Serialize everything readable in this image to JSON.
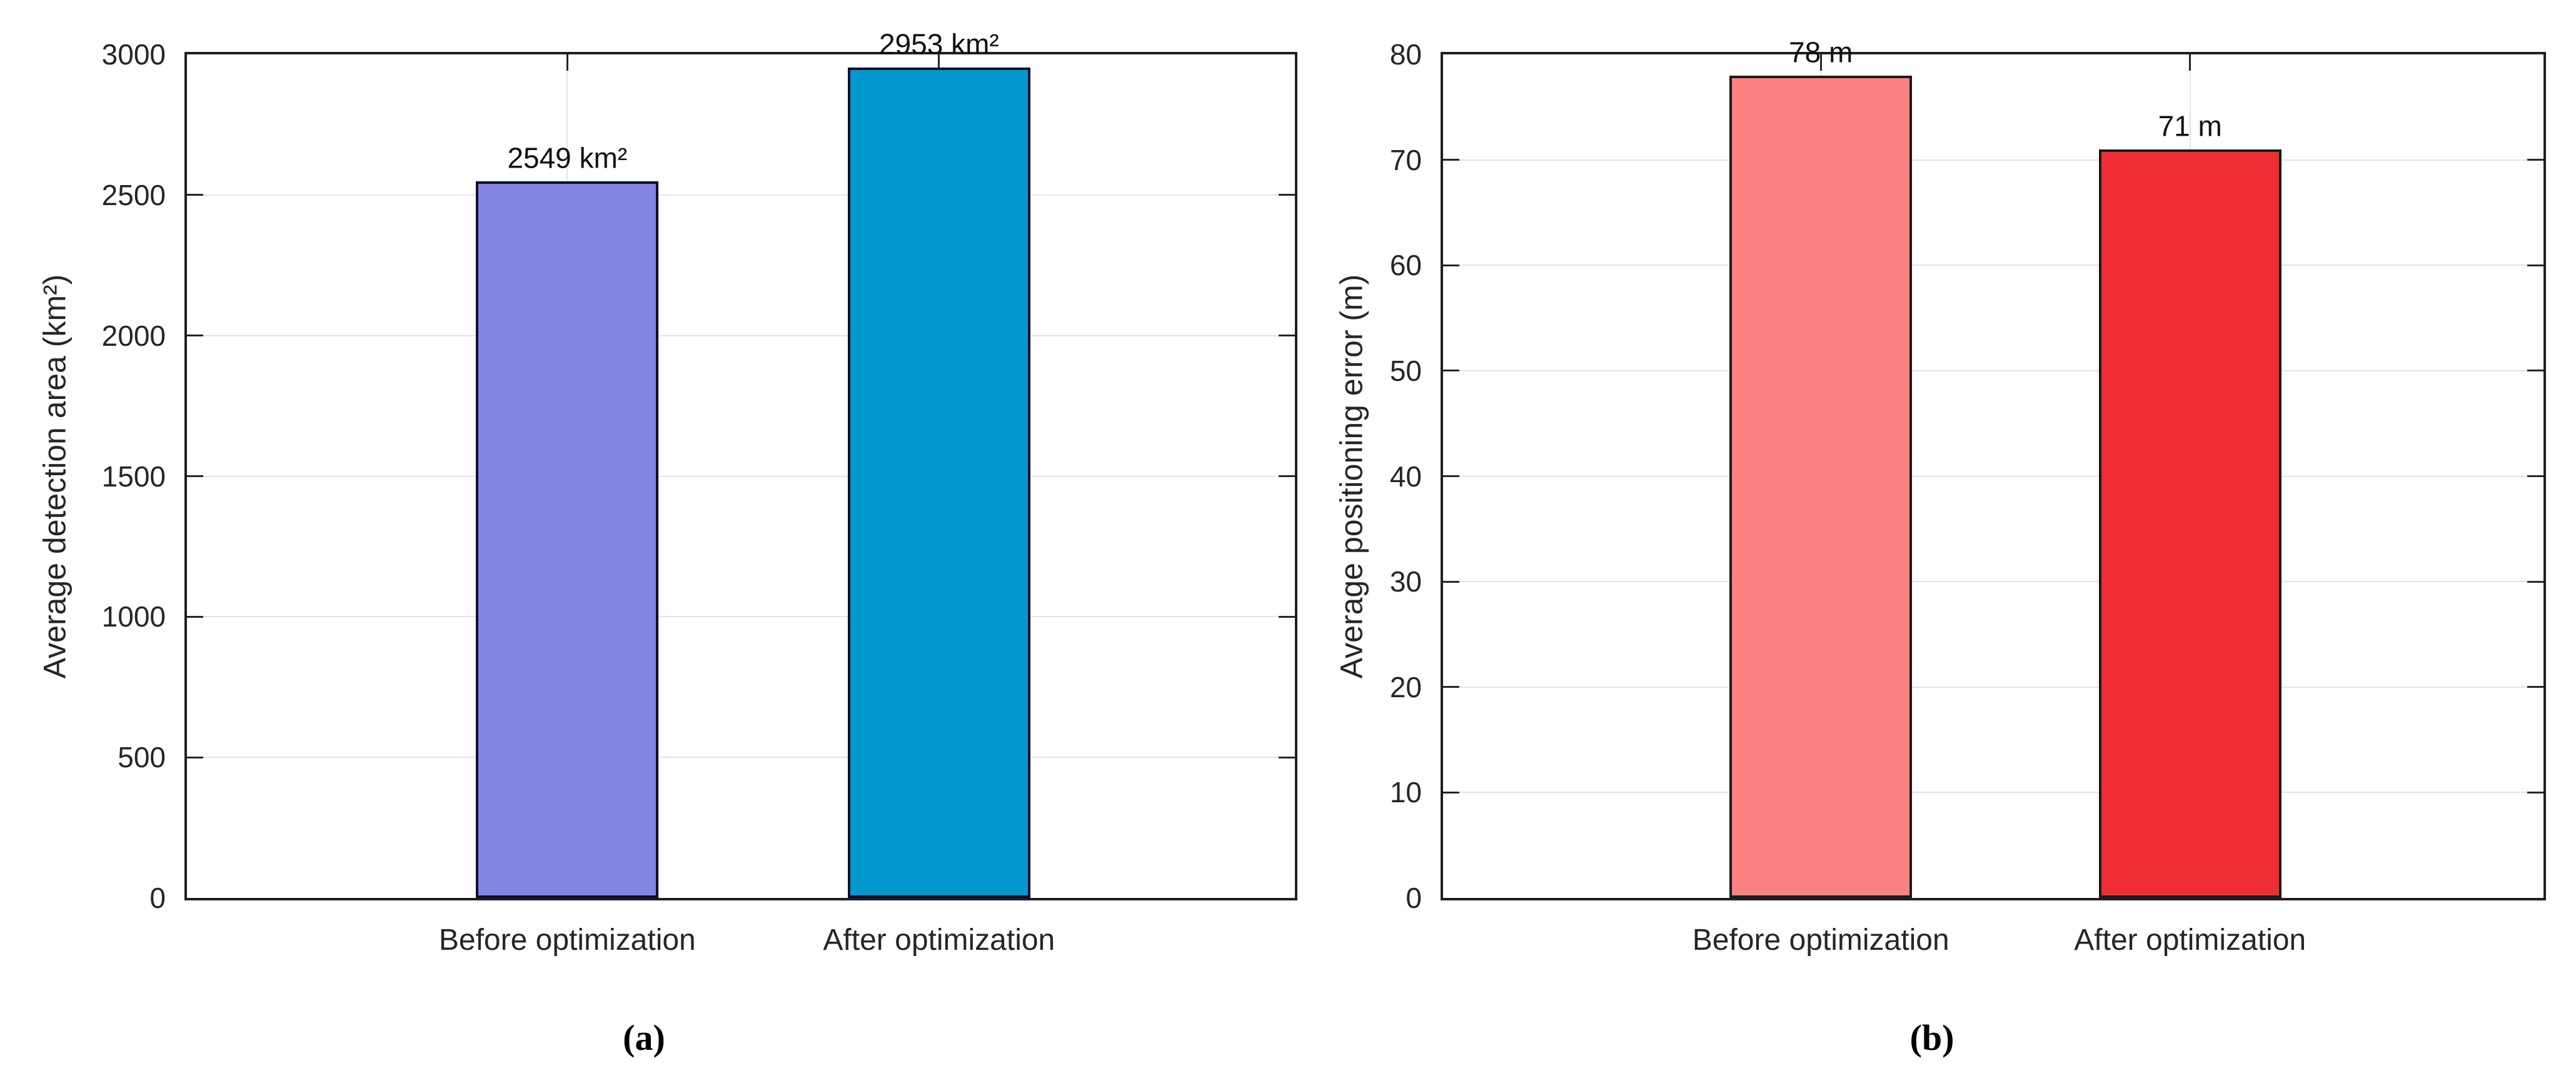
{
  "figure": {
    "background": "#FFFFFF"
  },
  "styles": {
    "frame_color": "#1F1F1F",
    "grid_color": "#E3E3E3",
    "tick_color": "#262626",
    "text_color": "#262626",
    "value_label_color": "#111111"
  },
  "chart_data": [
    {
      "panel": "a",
      "type": "bar",
      "title": "",
      "categories": [
        "Before optimization",
        "After optimization"
      ],
      "values": [
        2549,
        2953
      ],
      "bar_labels": [
        "2549 km²",
        "2953 km²"
      ],
      "bar_colors": [
        "#8384E4",
        "#0499CE"
      ],
      "bar_edge_color": "#0D0D2B",
      "xlabel": "",
      "ylabel": "Average detection area (km²)",
      "ylim": [
        0,
        3000
      ],
      "yticks": [
        0,
        500,
        1000,
        1500,
        2000,
        2500,
        3000
      ],
      "grid": true,
      "legend": null,
      "caption": "(a)"
    },
    {
      "panel": "b",
      "type": "bar",
      "title": "",
      "categories": [
        "Before optimization",
        "After optimization"
      ],
      "values": [
        78,
        71
      ],
      "bar_labels": [
        "78 m",
        "71 m"
      ],
      "bar_colors": [
        "#FC8181",
        "#EE2E33"
      ],
      "bar_edge_color": "#1A1A1A",
      "xlabel": "",
      "ylabel": "Average positioning error (m)",
      "ylim": [
        0,
        80
      ],
      "yticks": [
        0,
        10,
        20,
        30,
        40,
        50,
        60,
        70,
        80
      ],
      "grid": true,
      "legend": null,
      "caption": "(b)"
    }
  ]
}
